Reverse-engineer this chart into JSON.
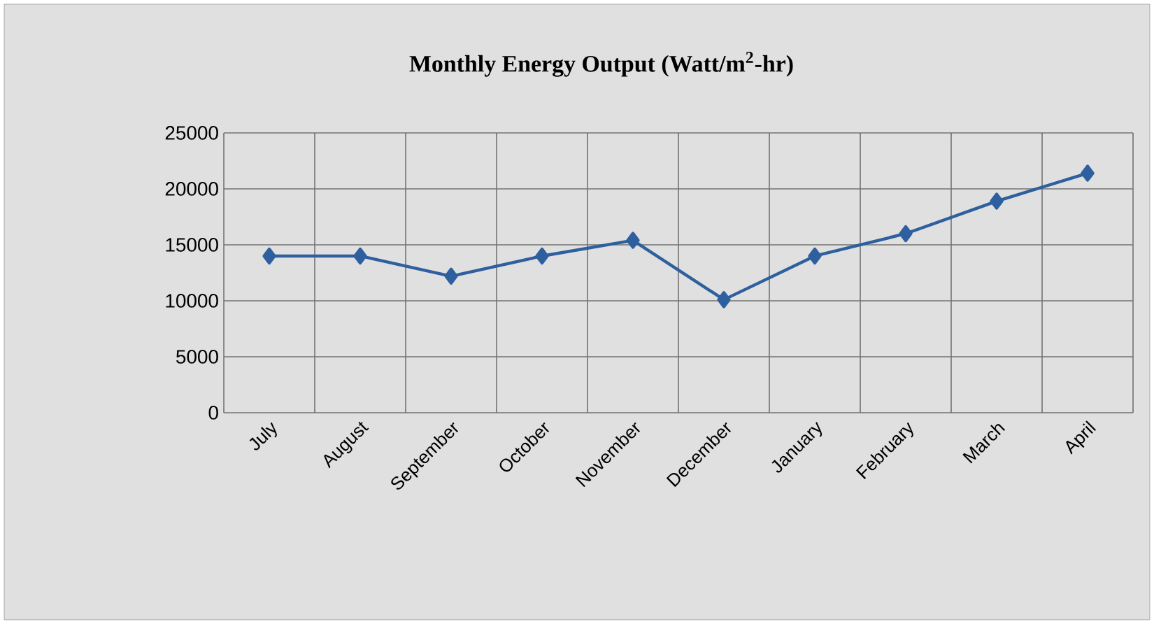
{
  "chart_data": {
    "type": "line",
    "title": "Monthly Energy Output (Watt/m$^{2}$-hr)",
    "categories": [
      "July",
      "August",
      "September",
      "October",
      "November",
      "December",
      "January",
      "February",
      "March",
      "April"
    ],
    "series": [
      {
        "color": "#2e5f9e",
        "values": [
          14000,
          14000,
          12200,
          14000,
          15400,
          10100,
          14000,
          16000,
          18900,
          21400
        ]
      }
    ],
    "ylim": [
      0,
      25000
    ],
    "yticks": [
      0,
      5000,
      10000,
      15000,
      20000,
      25000
    ],
    "grid": true,
    "marker": "diamond",
    "line_style": "solid"
  }
}
